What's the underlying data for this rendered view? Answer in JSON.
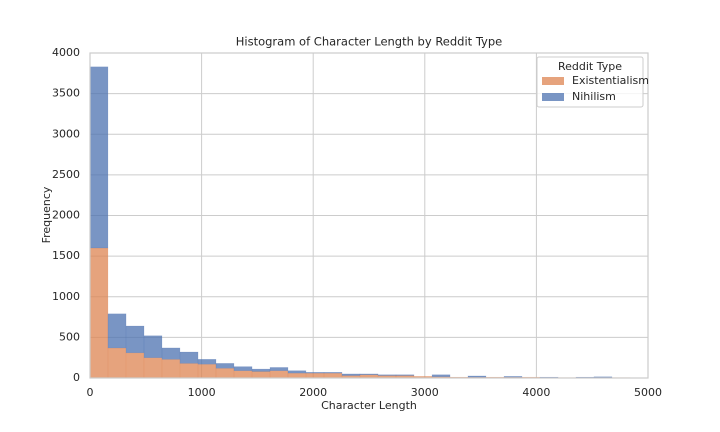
{
  "chart_data": {
    "type": "histogram",
    "stacked": true,
    "title": "Histogram of Character Length by Reddit Type",
    "xlabel": "Character Length",
    "ylabel": "Frequency",
    "legend_title": "Reddit Type",
    "legend": "upper right",
    "grid": true,
    "bins": [
      0,
      161,
      323,
      484,
      645,
      806,
      968,
      1129,
      1290,
      1452,
      1613,
      1774,
      1935,
      2097,
      2258,
      2419,
      2581,
      2742,
      2903,
      3065,
      3226,
      3387,
      3548,
      3710,
      3871,
      4032,
      4194,
      4355,
      4516,
      4677,
      4839
    ],
    "series": [
      {
        "name": "Existentialism",
        "color": "#dd8452",
        "values": [
          1600,
          370,
          310,
          250,
          230,
          180,
          170,
          120,
          90,
          80,
          90,
          60,
          60,
          60,
          30,
          40,
          30,
          30,
          20,
          15,
          10,
          10,
          10,
          10,
          10,
          5,
          5,
          5,
          5,
          5
        ]
      },
      {
        "name": "Nihilism",
        "color": "#4c72b0",
        "values": [
          2230,
          420,
          330,
          270,
          140,
          140,
          60,
          60,
          50,
          30,
          40,
          30,
          10,
          10,
          20,
          10,
          10,
          10,
          0,
          25,
          0,
          15,
          0,
          10,
          0,
          5,
          0,
          5,
          10,
          0
        ]
      }
    ],
    "xlim": [
      0,
      5000
    ],
    "xticks": [
      0,
      1000,
      2000,
      3000,
      4000,
      5000
    ],
    "ylim": [
      0,
      4000
    ],
    "yticks": [
      0,
      500,
      1000,
      1500,
      2000,
      2500,
      3000,
      3500,
      4000
    ]
  }
}
